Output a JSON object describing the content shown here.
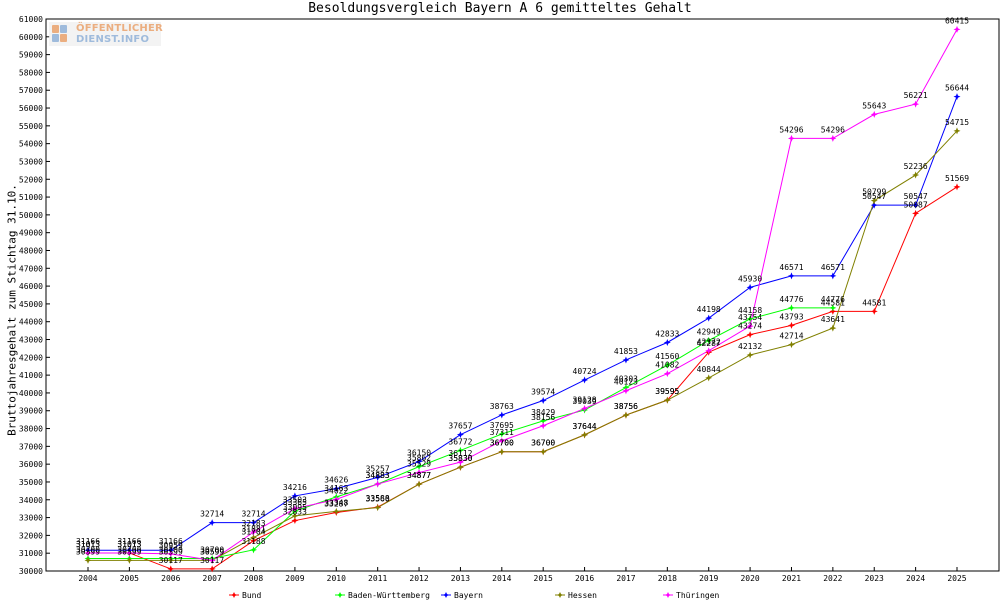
{
  "logo": {
    "line1": "ÖFFENTLICHER",
    "line2": "DIENST.INFO"
  },
  "chart_data": {
    "type": "line",
    "title": "Besoldungsvergleich Bayern A 6 gemitteltes Gehalt",
    "xlabel": "",
    "ylabel": "Bruttojahresgehalt zum Stichtag 31.10.",
    "ylim": [
      30000,
      61000
    ],
    "yticks": [
      30000,
      31000,
      32000,
      33000,
      34000,
      35000,
      36000,
      37000,
      38000,
      39000,
      40000,
      41000,
      42000,
      43000,
      44000,
      45000,
      46000,
      47000,
      48000,
      49000,
      50000,
      51000,
      52000,
      53000,
      54000,
      55000,
      56000,
      57000,
      58000,
      59000,
      60000,
      61000
    ],
    "categories": [
      "2004",
      "2005",
      "2006",
      "2007",
      "2008",
      "2009",
      "2010",
      "2011",
      "2012",
      "2013",
      "2014",
      "2015",
      "2016",
      "2017",
      "2018",
      "2019",
      "2020",
      "2021",
      "2022",
      "2023",
      "2024",
      "2025"
    ],
    "grid": false,
    "legend_position": "bottom",
    "series": [
      {
        "name": "Bund",
        "color": "#ff0000",
        "values": [
          31013,
          31013,
          30117,
          30117,
          31704,
          32833,
          33287,
          33588,
          34877,
          35830,
          36700,
          36700,
          37644,
          38756,
          39595,
          42287,
          43274,
          43793,
          44581,
          44581,
          50087,
          51569
        ]
      },
      {
        "name": "Baden-Württemberg",
        "color": "#00ff00",
        "values": [
          30700,
          30700,
          30700,
          30700,
          31188,
          33365,
          34163,
          34883,
          35862,
          36772,
          37695,
          38429,
          39039,
          40303,
          41560,
          42949,
          44158,
          44776,
          44776,
          null,
          null,
          null
        ]
      },
      {
        "name": "Bayern",
        "color": "#0000ff",
        "values": [
          31166,
          31166,
          31166,
          32714,
          32714,
          34216,
          34626,
          35257,
          36150,
          37657,
          38763,
          39574,
          40724,
          41853,
          42833,
          44198,
          45930,
          46571,
          46571,
          50547,
          50547,
          56644
        ]
      },
      {
        "name": "Hessen",
        "color": "#808000",
        "values": [
          30599,
          30599,
          30599,
          30599,
          31881,
          33095,
          33348,
          33560,
          34877,
          35830,
          36700,
          36700,
          37644,
          38756,
          39595,
          40844,
          42132,
          42714,
          43641,
          50799,
          52236,
          54715
        ]
      },
      {
        "name": "Thüringen",
        "color": "#ff00ff",
        "values": [
          31013,
          31013,
          30959,
          30599,
          32183,
          33503,
          34022,
          34883,
          35529,
          36112,
          37311,
          38156,
          39128,
          40123,
          41082,
          42372,
          43754,
          54296,
          54296,
          55643,
          56221,
          60415
        ]
      }
    ]
  }
}
